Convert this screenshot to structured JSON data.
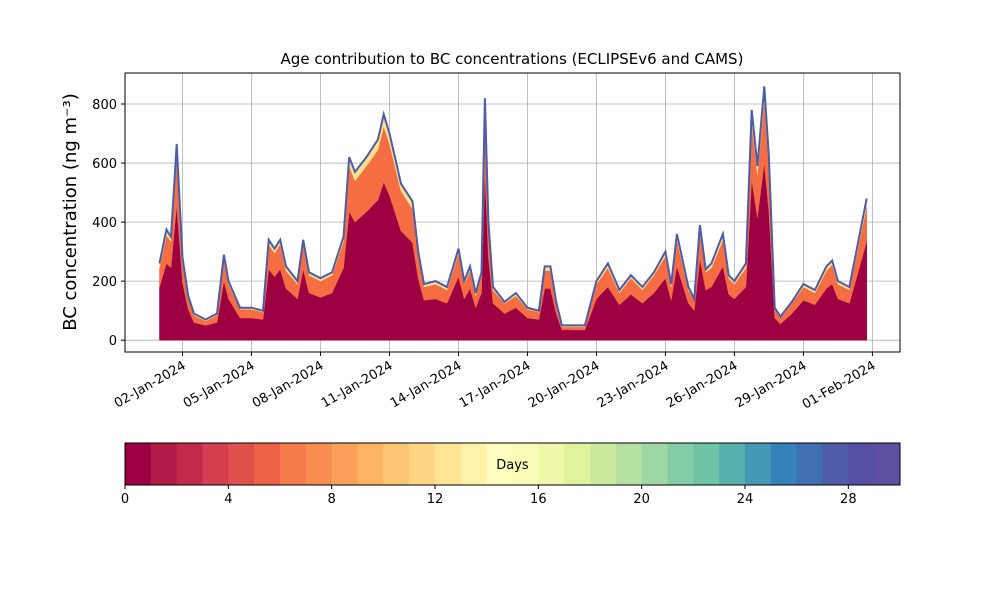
{
  "chart_data": {
    "type": "stacked_area",
    "title": "Age contribution to BC concentrations (ECLIPSEv6 and CAMS)",
    "y_label": "BC concentration (ng m⁻³)",
    "x": [
      1,
      1.3,
      1.5,
      1.75,
      2,
      2.25,
      2.5,
      3,
      3.5,
      3.8,
      4,
      4.5,
      5,
      5.5,
      5.75,
      6,
      6.25,
      6.5,
      7,
      7.25,
      7.5,
      8,
      8.5,
      9,
      9.25,
      9.5,
      10,
      10.5,
      10.75,
      11,
      11.5,
      12,
      12.25,
      12.5,
      13,
      13.5,
      14,
      14.25,
      14.5,
      14.75,
      15,
      15.15,
      15.3,
      15.5,
      16,
      16.5,
      17,
      17.5,
      17.75,
      18,
      18.25,
      18.5,
      19,
      19.5,
      20,
      20.5,
      21,
      21.5,
      22,
      22.5,
      23,
      23.25,
      23.5,
      24,
      24.25,
      24.5,
      24.75,
      25,
      25.5,
      25.75,
      26,
      26.5,
      26.75,
      27,
      27.3,
      27.5,
      27.75,
      28,
      28.5,
      29,
      29.5,
      30,
      30.25,
      30.5,
      31,
      31.5,
      31.75
    ],
    "series": [
      {
        "color": "#9e0142",
        "values": [
          180,
          260,
          245,
          460,
          195,
          105,
          60,
          50,
          60,
          200,
          140,
          75,
          75,
          70,
          240,
          215,
          240,
          175,
          140,
          240,
          160,
          145,
          160,
          245,
          435,
          400,
          435,
          475,
          535,
          490,
          370,
          330,
          210,
          135,
          140,
          125,
          215,
          140,
          175,
          110,
          160,
          575,
          280,
          125,
          90,
          110,
          75,
          70,
          175,
          175,
          90,
          35,
          35,
          35,
          140,
          180,
          120,
          155,
          125,
          160,
          210,
          135,
          250,
          125,
          100,
          275,
          170,
          180,
          250,
          155,
          140,
          180,
          545,
          415,
          600,
          435,
          75,
          55,
          90,
          135,
          120,
          175,
          190,
          140,
          125,
          265,
          335
        ]
      },
      {
        "color": "#f46d43",
        "values": [
          65,
          95,
          90,
          170,
          70,
          40,
          25,
          15,
          25,
          75,
          50,
          30,
          30,
          25,
          85,
          80,
          85,
          60,
          50,
          85,
          60,
          55,
          60,
          90,
          155,
          140,
          155,
          170,
          190,
          175,
          135,
          115,
          75,
          45,
          50,
          45,
          80,
          50,
          60,
          40,
          60,
          205,
          100,
          45,
          35,
          40,
          30,
          25,
          60,
          60,
          35,
          10,
          10,
          10,
          50,
          65,
          40,
          55,
          45,
          60,
          75,
          45,
          90,
          45,
          35,
          95,
          60,
          65,
          90,
          55,
          50,
          65,
          195,
          145,
          215,
          155,
          30,
          20,
          35,
          45,
          40,
          60,
          65,
          50,
          45,
          95,
          120
        ]
      },
      {
        "color": "#fee08b",
        "values": [
          15,
          20,
          15,
          35,
          15,
          5,
          5,
          5,
          5,
          15,
          10,
          5,
          5,
          5,
          15,
          15,
          15,
          15,
          10,
          15,
          10,
          10,
          10,
          15,
          30,
          30,
          30,
          35,
          40,
          35,
          25,
          25,
          15,
          10,
          10,
          10,
          15,
          10,
          15,
          10,
          10,
          40,
          20,
          10,
          5,
          10,
          5,
          5,
          15,
          15,
          5,
          5,
          5,
          5,
          10,
          15,
          10,
          10,
          10,
          10,
          15,
          10,
          20,
          10,
          5,
          20,
          10,
          15,
          20,
          10,
          10,
          15,
          40,
          30,
          45,
          30,
          5,
          5,
          5,
          10,
          10,
          15,
          15,
          10,
          10,
          20,
          25
        ]
      }
    ],
    "outline_color": "#4c5ca8",
    "xlim": [
      -0.5,
      33.2
    ],
    "xticks": [
      {
        "value": 2,
        "label": "02-Jan-2024"
      },
      {
        "value": 5,
        "label": "05-Jan-2024"
      },
      {
        "value": 8,
        "label": "08-Jan-2024"
      },
      {
        "value": 11,
        "label": "11-Jan-2024"
      },
      {
        "value": 14,
        "label": "14-Jan-2024"
      },
      {
        "value": 17,
        "label": "17-Jan-2024"
      },
      {
        "value": 20,
        "label": "20-Jan-2024"
      },
      {
        "value": 23,
        "label": "23-Jan-2024"
      },
      {
        "value": 26,
        "label": "26-Jan-2024"
      },
      {
        "value": 29,
        "label": "29-Jan-2024"
      },
      {
        "value": 32,
        "label": "01-Feb-2024"
      }
    ],
    "ylim": [
      -40,
      905
    ],
    "yticks": [
      0,
      200,
      400,
      600,
      800
    ],
    "grid": true,
    "colorbar": {
      "label": "Days",
      "lim": [
        0,
        30
      ],
      "ticks": [
        0,
        4,
        8,
        12,
        16,
        20,
        24,
        28
      ],
      "colors": [
        "#9e0142",
        "#b01a47",
        "#c2294a",
        "#d53e4f",
        "#e0504a",
        "#eb6245",
        "#f57a4b",
        "#f88c51",
        "#fba05b",
        "#fdb466",
        "#fdc675",
        "#fed683",
        "#fee593",
        "#fff3aa",
        "#fffebe",
        "#f8fcb4",
        "#eef8a8",
        "#e0f29a",
        "#ccea9d",
        "#b4e1a2",
        "#9cd7a4",
        "#83cca5",
        "#6cc3a5",
        "#57b0ab",
        "#4598b6",
        "#3583b9",
        "#3e6fb0",
        "#4c5ca8",
        "#5550a4",
        "#5e4fa2"
      ]
    }
  }
}
